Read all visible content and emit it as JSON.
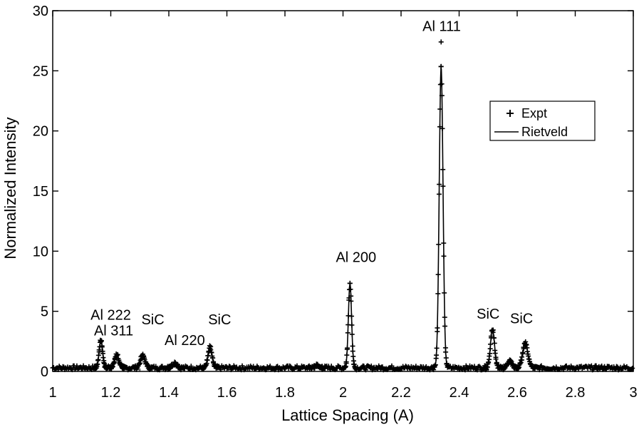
{
  "chart_data": {
    "type": "line",
    "xlabel": "Lattice Spacing (A)",
    "ylabel": "Normalized Intensity",
    "xlim": [
      1,
      3
    ],
    "ylim": [
      0,
      30
    ],
    "x_ticks": [
      "1",
      "1.2",
      "1.4",
      "1.6",
      "1.8",
      "2",
      "2.2",
      "2.4",
      "2.6",
      "2.8",
      "3"
    ],
    "y_ticks": [
      "0",
      "5",
      "10",
      "15",
      "20",
      "25",
      "30"
    ],
    "legend": {
      "position": "top-right",
      "entries": [
        {
          "label": "Expt",
          "marker": "plus"
        },
        {
          "label": "Rietveld",
          "marker": "line"
        }
      ]
    },
    "baseline": 0.3,
    "peaks": [
      {
        "x": 1.166,
        "height": 2.3,
        "width": 0.006
      },
      {
        "x": 1.221,
        "height": 1.1,
        "width": 0.007
      },
      {
        "x": 1.31,
        "height": 1.0,
        "width": 0.008
      },
      {
        "x": 1.42,
        "height": 0.4,
        "width": 0.008
      },
      {
        "x": 1.542,
        "height": 1.7,
        "width": 0.007
      },
      {
        "x": 1.91,
        "height": 0.2,
        "width": 0.007
      },
      {
        "x": 2.024,
        "height": 7.0,
        "width": 0.0055
      },
      {
        "x": 2.338,
        "height": 25.0,
        "width": 0.0065
      },
      {
        "x": 2.515,
        "height": 3.2,
        "width": 0.007
      },
      {
        "x": 2.575,
        "height": 0.5,
        "width": 0.008
      },
      {
        "x": 2.628,
        "height": 2.0,
        "width": 0.009
      }
    ],
    "expt_outliers": [
      {
        "x": 2.338,
        "y": 27.4
      }
    ],
    "annotations": [
      {
        "text": "Al 222",
        "x": 1.2,
        "y": 4.3
      },
      {
        "text": "Al 311",
        "x": 1.21,
        "y": 3.0
      },
      {
        "text": "SiC",
        "x": 1.345,
        "y": 3.9
      },
      {
        "text": "Al 220",
        "x": 1.455,
        "y": 2.2
      },
      {
        "text": "SiC",
        "x": 1.575,
        "y": 3.9
      },
      {
        "text": "Al 200",
        "x": 2.045,
        "y": 9.1
      },
      {
        "text": "Al 111",
        "x": 2.34,
        "y": 28.3
      },
      {
        "text": "SiC",
        "x": 2.5,
        "y": 4.4
      },
      {
        "text": "SiC",
        "x": 2.615,
        "y": 4.0
      }
    ],
    "grid": false,
    "colors": {
      "line": "#000000",
      "marker": "#000000",
      "frame": "#000000"
    }
  }
}
